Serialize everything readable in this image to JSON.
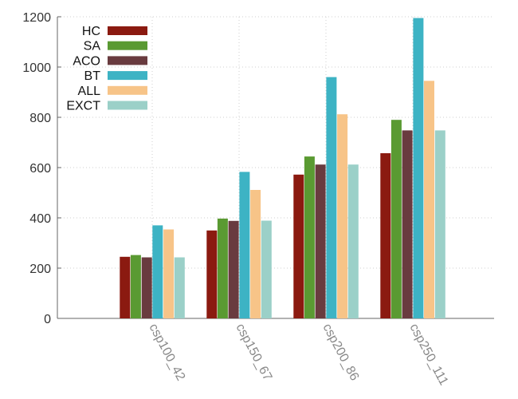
{
  "chart_data": {
    "type": "bar",
    "categories": [
      "csp100_42",
      "csp150_67",
      "csp200_86",
      "csp250_111"
    ],
    "series": [
      {
        "name": "HC",
        "color": "#8b1a10",
        "values": [
          245,
          350,
          572,
          657
        ]
      },
      {
        "name": "SA",
        "color": "#5a9a32",
        "values": [
          252,
          397,
          644,
          790
        ]
      },
      {
        "name": "ACO",
        "color": "#693b3f",
        "values": [
          243,
          388,
          612,
          748
        ]
      },
      {
        "name": "BT",
        "color": "#3db3c4",
        "values": [
          370,
          583,
          960,
          1195
        ]
      },
      {
        "name": "ALL",
        "color": "#f7c488",
        "values": [
          354,
          511,
          812,
          945
        ]
      },
      {
        "name": "EXCT",
        "color": "#9bd0c8",
        "values": [
          243,
          389,
          612,
          748
        ]
      }
    ],
    "yticks": [
      0,
      200,
      400,
      600,
      800,
      1000,
      1200
    ],
    "ylim": [
      0,
      1200
    ],
    "grid": true,
    "legend_position": "top-left",
    "title": "",
    "xlabel": "",
    "ylabel": ""
  }
}
